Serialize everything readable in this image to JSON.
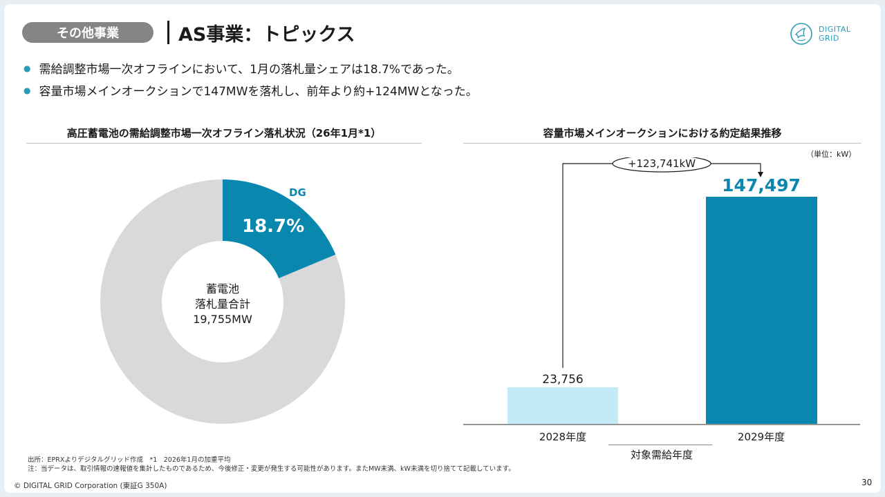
{
  "header": {
    "section": "その他事業",
    "title": "AS事業：トピックス",
    "logo": [
      "DIGITAL",
      "GRID"
    ]
  },
  "bullets": [
    "需給調整市場一次オフラインにおいて、1月の落札量シェアは18.7%であった。",
    "容量市場メインオークションで147MWを落札し、前年より約+124MWとなった。"
  ],
  "left_chart_title": "高圧蓄電池の需給調整市場一次オフライン落札状況（26年1月*1）",
  "right_chart_title": "容量市場メインオークションにおける約定結果推移",
  "chart_data": [
    {
      "type": "pie",
      "title": "高圧蓄電池の需給調整市場一次オフライン落札状況（26年1月*1）",
      "slices": [
        {
          "label": "DG",
          "value": 18.7,
          "display": "18.7%",
          "color": "#0a87af"
        },
        {
          "label": "",
          "value": 81.3,
          "color": "#d9d9d9"
        }
      ],
      "center_text": [
        "蓄電池",
        "落札量合計",
        "19,755MW"
      ]
    },
    {
      "type": "bar",
      "title": "容量市場メインオークションにおける約定結果推移",
      "unit": "（単位：kW）",
      "categories": [
        "2028年度",
        "2029年度"
      ],
      "values": [
        23756,
        147497
      ],
      "value_labels": [
        "23,756",
        "147,497"
      ],
      "colors": [
        "#c3ebf7",
        "#0a87af"
      ],
      "xlabel": "対象需給年度",
      "annotation": "+123,741kW",
      "ylim": [
        0,
        160000
      ]
    }
  ],
  "notes": [
    "出所：EPRXよりデジタルグリッド作成　*1　2026年1月の加重平均",
    "注：当データは、取引情報の速報値を集計したものであるため、今後修正・変更が発生する可能性があります。またMW未満、kW未満を切り捨てて記載しています。"
  ],
  "footer": {
    "copyright": "© DIGITAL GRID Corporation (東証G 350A)",
    "page": "30"
  }
}
